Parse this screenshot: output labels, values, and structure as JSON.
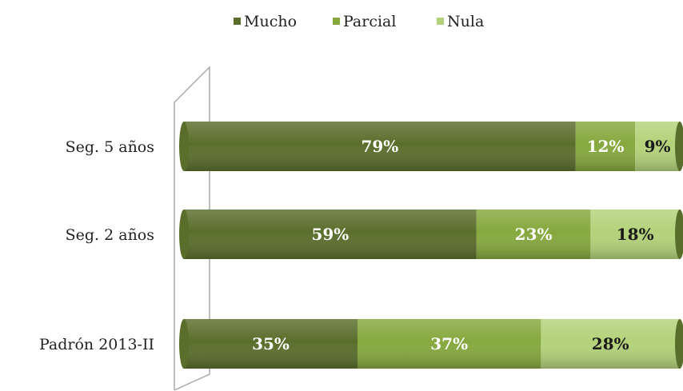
{
  "chart_data": {
    "type": "bar",
    "orientation": "horizontal",
    "stacked": true,
    "normalized": true,
    "title": "",
    "xlabel": "",
    "ylabel": "",
    "xlim": [
      0,
      100
    ],
    "grid": false,
    "legend_position": "top",
    "categories": [
      "Seg. 5 años",
      "Seg. 2 años",
      "Padrón 2013-II"
    ],
    "series": [
      {
        "name": "Mucho",
        "values": [
          79,
          59,
          35
        ],
        "labels": [
          "79%",
          "59%",
          "35%"
        ],
        "color": "#5a6e2c",
        "label_color": "#ffffff"
      },
      {
        "name": "Parcial",
        "values": [
          12,
          23,
          37
        ],
        "labels": [
          "12%",
          "23%",
          "37%"
        ],
        "color": "#86a83e",
        "label_color": "#ffffff"
      },
      {
        "name": "Nula",
        "values": [
          9,
          18,
          28
        ],
        "labels": [
          "9%",
          "18%",
          "28%"
        ],
        "color": "#b4d27a",
        "label_color": "#1a1a1a"
      }
    ]
  }
}
